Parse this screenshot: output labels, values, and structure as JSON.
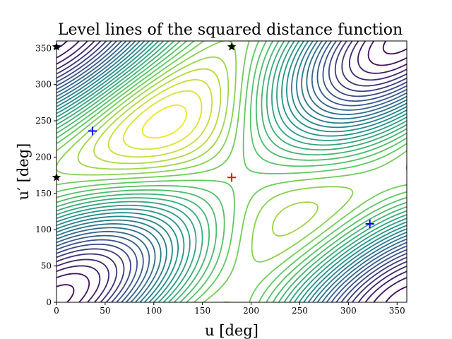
{
  "chart_data": {
    "type": "contour",
    "title": "Level lines of the squared distance function",
    "xlabel": "u [deg]",
    "ylabel": "u′ [deg]",
    "xlim": [
      0,
      360
    ],
    "ylim": [
      0,
      360
    ],
    "x_ticks": [
      0,
      50,
      100,
      150,
      200,
      250,
      300,
      350
    ],
    "y_ticks": [
      0,
      50,
      100,
      150,
      200,
      250,
      300,
      350
    ],
    "colormap": [
      "#440154",
      "#3b528b",
      "#21918c",
      "#5ec962",
      "#fde725"
    ],
    "contour_levels": 30,
    "markers": [
      {
        "name": "maximum",
        "symbol": "+",
        "color": "#ff0000",
        "x": 180,
        "y": 172
      },
      {
        "name": "minimum",
        "symbol": "+",
        "color": "#0000ff",
        "x": 37,
        "y": 236
      },
      {
        "name": "minimum",
        "symbol": "+",
        "color": "#0000ff",
        "x": 322,
        "y": 108
      },
      {
        "name": "saddle",
        "symbol": "star",
        "color": "#000000",
        "x": 180,
        "y": 352
      },
      {
        "name": "saddle",
        "symbol": "star",
        "color": "#000000",
        "x": 0,
        "y": 352
      },
      {
        "name": "saddle",
        "symbol": "star",
        "color": "#000000",
        "x": 0,
        "y": 172
      }
    ]
  }
}
